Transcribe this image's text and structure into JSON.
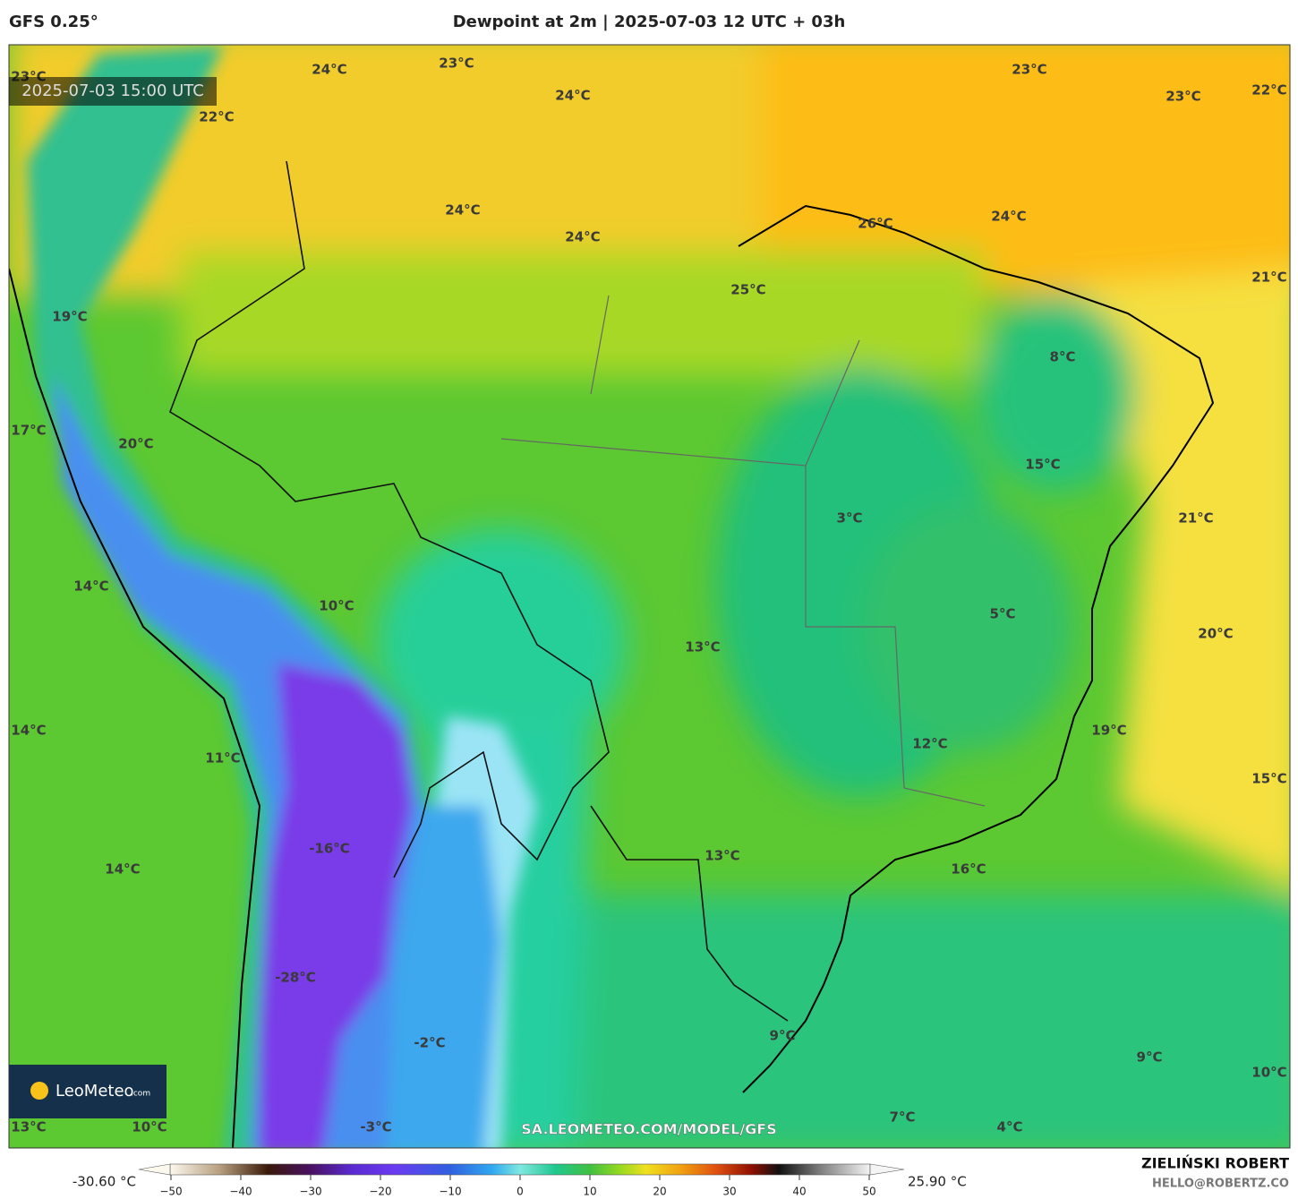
{
  "header": {
    "model": "GFS 0.25°",
    "title": "Dewpoint at 2m | 2025-07-03 12 UTC + 03h"
  },
  "map": {
    "timestamp": "2025-07-03 15:00 UTC",
    "watermark": "SA.LEOMETEO.COM/MODEL/GFS",
    "logo": {
      "name": "LeoMeteo",
      "suffix": ".com"
    },
    "labels": [
      "23°C",
      "24°C",
      "23°C",
      "24°C",
      "23°C",
      "23°C",
      "22°C",
      "22°C",
      "24°C",
      "24°C",
      "26°C",
      "24°C",
      "25°C",
      "21°C",
      "19°C",
      "8°C",
      "17°C",
      "20°C",
      "15°C",
      "3°C",
      "21°C",
      "14°C",
      "10°C",
      "5°C",
      "20°C",
      "13°C",
      "14°C",
      "19°C",
      "12°C",
      "11°C",
      "15°C",
      "-16°C",
      "13°C",
      "14°C",
      "16°C",
      "-28°C",
      "9°C",
      "-2°C",
      "9°C",
      "10°C",
      "7°C",
      "13°C",
      "10°C",
      "-3°C",
      "4°C"
    ]
  },
  "colorbar": {
    "min_label": "-30.60 °C",
    "max_label": "25.90 °C",
    "range": [
      -55,
      55
    ],
    "ticks": [
      {
        "value": -50,
        "label": "−50"
      },
      {
        "value": -40,
        "label": "−40"
      },
      {
        "value": -30,
        "label": "−30"
      },
      {
        "value": -20,
        "label": "−20"
      },
      {
        "value": -10,
        "label": "−10"
      },
      0,
      10,
      20,
      30,
      40,
      50
    ]
  },
  "credits": {
    "author": "ZIELIŃSKI ROBERT",
    "contact": "HELLO@ROBERTZ.CO"
  }
}
